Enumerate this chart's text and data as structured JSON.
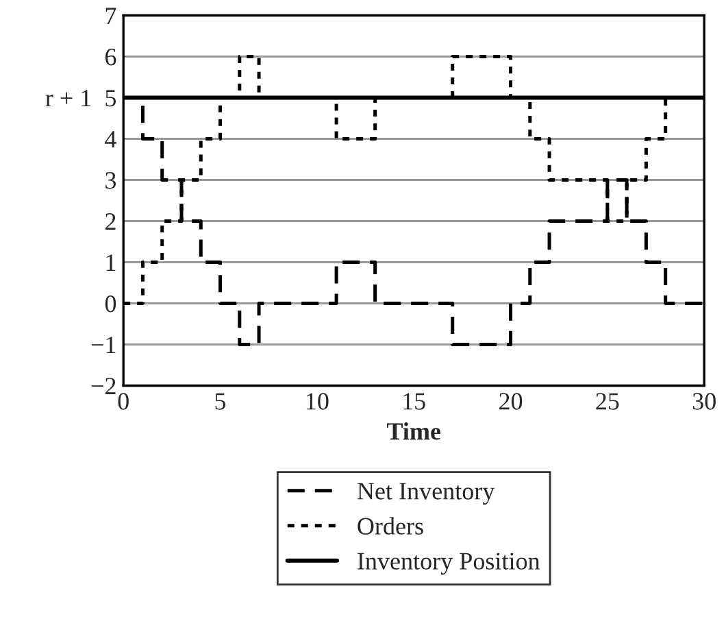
{
  "chart_data": {
    "type": "step",
    "xlabel": "Time",
    "x": [
      0,
      1,
      2,
      3,
      4,
      5,
      6,
      7,
      11,
      13,
      17,
      20,
      21,
      22,
      25,
      26,
      27,
      28,
      30
    ],
    "series": [
      {
        "name": "Net Inventory",
        "color": "#000000",
        "line_style": "dashed",
        "values": [
          5,
          4,
          3,
          2,
          1,
          0,
          -1,
          0,
          1,
          0,
          -1,
          0,
          1,
          2,
          3,
          2,
          1,
          0,
          0
        ]
      },
      {
        "name": "Orders",
        "color": "#000000",
        "line_style": "dotted",
        "values": [
          0,
          1,
          2,
          3,
          4,
          5,
          6,
          5,
          4,
          5,
          6,
          5,
          4,
          3,
          2,
          3,
          4,
          5,
          5
        ]
      },
      {
        "name": "Inventory Position",
        "color": "#000000",
        "line_style": "solid",
        "values": [
          5,
          5,
          5,
          5,
          5,
          5,
          5,
          5,
          5,
          5,
          5,
          5,
          5,
          5,
          5,
          5,
          5,
          5,
          5
        ]
      }
    ],
    "xlim": [
      0,
      30
    ],
    "xticks": [
      0,
      5,
      10,
      15,
      20,
      25,
      30
    ],
    "ylim": [
      -2,
      7
    ],
    "yticks": [
      -2,
      -1,
      0,
      1,
      2,
      3,
      4,
      {
        "value": 5,
        "label": "r + 1  5"
      },
      6,
      7
    ],
    "grid": "y",
    "legend": "bottom"
  }
}
